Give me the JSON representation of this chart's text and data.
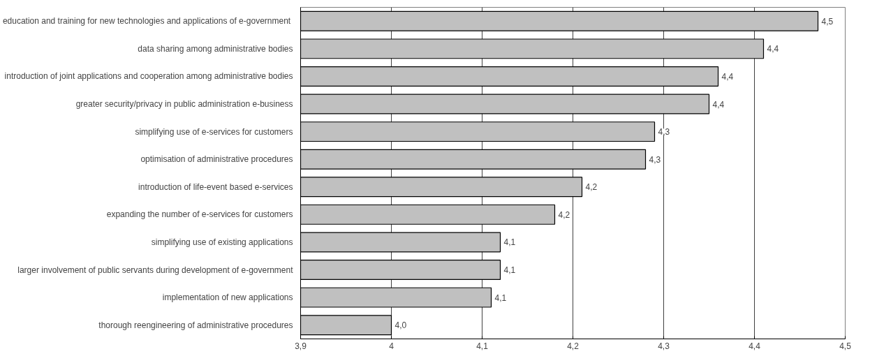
{
  "chart_data": {
    "type": "bar",
    "orientation": "horizontal",
    "categories": [
      "education and training for new  technologies and applications of e-government",
      "data sharing among administrative bodies",
      "introduction of joint applications and cooperation among administrative bodies",
      "greater security/privacy in public administration e-business",
      "simplifying use of e-services for customers",
      "optimisation of administrative procedures",
      "introduction of life-event based e-services",
      "expanding the number of e-services for customers",
      "simplifying use of existing applications",
      "larger involvement of public servants during development of e-government",
      "implementation of new applications",
      "thorough reengineering of administrative procedures"
    ],
    "values": [
      4.47,
      4.41,
      4.36,
      4.35,
      4.29,
      4.28,
      4.21,
      4.18,
      4.12,
      4.12,
      4.11,
      4.0
    ],
    "value_labels": [
      "4,5",
      "4,4",
      "4,4",
      "4,4",
      "4,3",
      "4,3",
      "4,2",
      "4,2",
      "4,1",
      "4,1",
      "4,1",
      "4,0"
    ],
    "color": "#c0c0c0",
    "xlim": [
      3.9,
      4.5
    ],
    "xticks": [
      {
        "value": 3.9,
        "label": "3,9"
      },
      4,
      {
        "value": 4.1,
        "label": "4,1"
      },
      {
        "value": 4.2,
        "label": "4,2"
      },
      {
        "value": 4.3,
        "label": "4,3"
      },
      {
        "value": 4.4,
        "label": "4,4"
      },
      {
        "value": 4.5,
        "label": "4,5"
      }
    ],
    "grid": "x"
  }
}
